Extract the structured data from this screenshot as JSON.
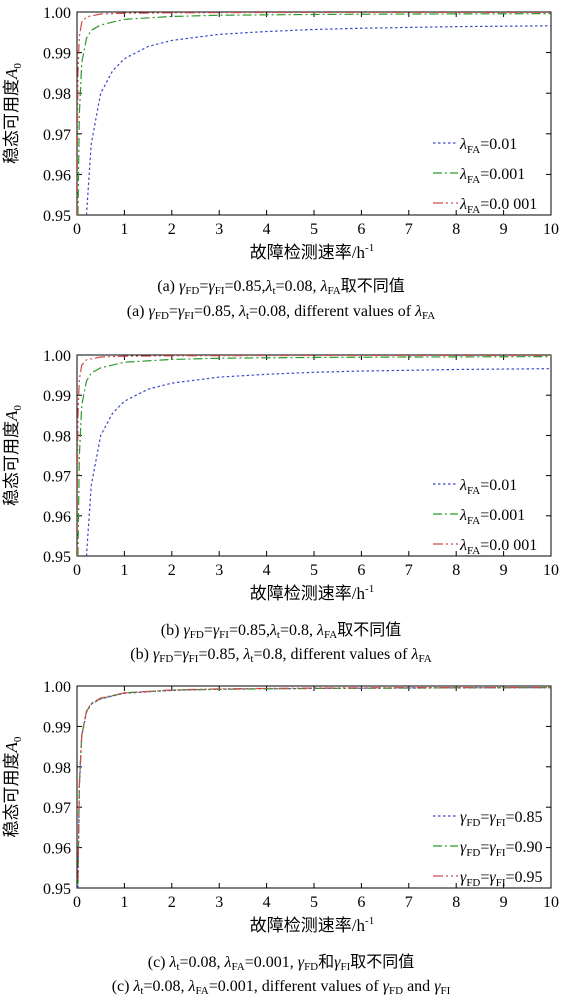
{
  "chart_data": [
    {
      "type": "line",
      "ylabel": "稳态可用度A0",
      "xlabel": "故障检测速率/h-1",
      "xlim": [
        0,
        10
      ],
      "ylim": [
        0.95,
        1.0
      ],
      "xticks": [
        "0",
        "1",
        "2",
        "3",
        "4",
        "5",
        "6",
        "7",
        "8",
        "9",
        "10"
      ],
      "yticks": [
        "0.95",
        "0.96",
        "0.97",
        "0.98",
        "0.99",
        "1.00"
      ],
      "grid": false,
      "legend": "bottom-right",
      "series": [
        {
          "name": "λFA=0.01",
          "color": "#3a48c8",
          "x": [
            0.2,
            0.3,
            0.5,
            0.75,
            1,
            1.5,
            2,
            3,
            4,
            5,
            6,
            7,
            8,
            9,
            10
          ],
          "y": [
            0.95,
            0.9675,
            0.98,
            0.9855,
            0.9885,
            0.9915,
            0.993,
            0.9945,
            0.9952,
            0.9957,
            0.996,
            0.9962,
            0.9964,
            0.9965,
            0.9966
          ]
        },
        {
          "name": "λFA=0.001",
          "color": "#2a9a2a",
          "x": [
            0.02,
            0.05,
            0.1,
            0.2,
            0.3,
            0.5,
            1,
            2,
            3,
            5,
            7,
            10
          ],
          "y": [
            0.95,
            0.975,
            0.9875,
            0.9935,
            0.9955,
            0.9968,
            0.9982,
            0.9989,
            0.9992,
            0.9994,
            0.9995,
            0.9996
          ]
        },
        {
          "name": "λFA=0.0 001",
          "color": "#d24a4a",
          "x": [
            0.005,
            0.01,
            0.02,
            0.05,
            0.1,
            0.2,
            0.5,
            1,
            2,
            5,
            10
          ],
          "y": [
            0.95,
            0.97,
            0.985,
            0.994,
            0.9975,
            0.9988,
            0.9995,
            0.9997,
            0.9998,
            0.9999,
            0.9999
          ]
        }
      ]
    },
    {
      "type": "line",
      "ylabel": "稳态可用度A0",
      "xlabel": "故障检测速率/h-1",
      "xlim": [
        0,
        10
      ],
      "ylim": [
        0.95,
        1.0
      ],
      "xticks": [
        "0",
        "1",
        "2",
        "3",
        "4",
        "5",
        "6",
        "7",
        "8",
        "9",
        "10"
      ],
      "yticks": [
        "0.95",
        "0.96",
        "0.97",
        "0.98",
        "0.99",
        "1.00"
      ],
      "grid": false,
      "legend": "bottom-right",
      "series": [
        {
          "name": "λFA=0.01",
          "color": "#3a48c8",
          "x": [
            0.2,
            0.3,
            0.5,
            0.75,
            1,
            1.5,
            2,
            3,
            4,
            5,
            6,
            7,
            8,
            9,
            10
          ],
          "y": [
            0.95,
            0.9675,
            0.98,
            0.9855,
            0.9885,
            0.9915,
            0.993,
            0.9945,
            0.9952,
            0.9957,
            0.996,
            0.9962,
            0.9964,
            0.9965,
            0.9966
          ]
        },
        {
          "name": "λFA=0.001",
          "color": "#2a9a2a",
          "x": [
            0.02,
            0.05,
            0.1,
            0.2,
            0.3,
            0.5,
            1,
            2,
            3,
            5,
            7,
            10
          ],
          "y": [
            0.95,
            0.975,
            0.9875,
            0.9935,
            0.9955,
            0.9968,
            0.9982,
            0.9989,
            0.9992,
            0.9994,
            0.9995,
            0.9996
          ]
        },
        {
          "name": "λFA=0.0 001",
          "color": "#d24a4a",
          "x": [
            0.005,
            0.01,
            0.02,
            0.05,
            0.1,
            0.2,
            0.5,
            1,
            2,
            5,
            10
          ],
          "y": [
            0.95,
            0.97,
            0.985,
            0.994,
            0.9975,
            0.9988,
            0.9995,
            0.9997,
            0.9998,
            0.9999,
            0.9999
          ]
        }
      ]
    },
    {
      "type": "line",
      "ylabel": "稳态可用度A0",
      "xlabel": "故障检测速率/h-1",
      "xlim": [
        0,
        10
      ],
      "ylim": [
        0.95,
        1.0
      ],
      "xticks": [
        "0",
        "1",
        "2",
        "3",
        "4",
        "5",
        "6",
        "7",
        "8",
        "9",
        "10"
      ],
      "yticks": [
        "0.95",
        "0.96",
        "0.97",
        "0.98",
        "0.99",
        "1.00"
      ],
      "grid": false,
      "legend": "bottom-right",
      "series": [
        {
          "name": "γFD=γFI=0.85",
          "color": "#3a48c8",
          "x": [
            0.02,
            0.05,
            0.1,
            0.2,
            0.3,
            0.5,
            1,
            2,
            3,
            5,
            7,
            10
          ],
          "y": [
            0.95,
            0.975,
            0.9875,
            0.9935,
            0.9955,
            0.9968,
            0.9982,
            0.9989,
            0.9992,
            0.9994,
            0.9995,
            0.9996
          ]
        },
        {
          "name": "γFD=γFI=0.90",
          "color": "#2a9a2a",
          "x": [
            0.02,
            0.05,
            0.1,
            0.2,
            0.3,
            0.5,
            1,
            2,
            3,
            5,
            7,
            10
          ],
          "y": [
            0.951,
            0.9755,
            0.9878,
            0.9937,
            0.9956,
            0.9969,
            0.9983,
            0.999,
            0.9992,
            0.9994,
            0.9995,
            0.9996
          ]
        },
        {
          "name": "γFD=γFI=0.95",
          "color": "#d24a4a",
          "x": [
            0.02,
            0.05,
            0.1,
            0.2,
            0.3,
            0.5,
            1,
            2,
            3,
            5,
            7,
            10
          ],
          "y": [
            0.952,
            0.976,
            0.988,
            0.9938,
            0.9957,
            0.997,
            0.9983,
            0.999,
            0.9993,
            0.9995,
            0.9996,
            0.9996
          ]
        }
      ]
    }
  ],
  "captions": [
    {
      "cn": {
        "a": "(a) ",
        "g1": "γ",
        "s1": "FD",
        "eq1": "=",
        "g2": "γ",
        "s2": "FI",
        "t1": "=0.85,",
        "l1": "λ",
        "s3": "t",
        "t2": "=0.08, ",
        "l2": "λ",
        "s4": "FA",
        "t3": "取不同值"
      },
      "en": {
        "a": "(a) ",
        "g1": "γ",
        "s1": "FD",
        "eq1": "=",
        "g2": "γ",
        "s2": "FI",
        "t1": "=0.85, ",
        "l1": "λ",
        "s3": "t",
        "t2": "=0.08, different values of  ",
        "l2": "λ",
        "s4": "FA",
        "t3": ""
      }
    },
    {
      "cn": {
        "a": "(b) ",
        "g1": "γ",
        "s1": "FD",
        "eq1": "=",
        "g2": "γ",
        "s2": "FI",
        "t1": "=0.85,",
        "l1": "λ",
        "s3": "t",
        "t2": "=0.8, ",
        "l2": "λ",
        "s4": "FA",
        "t3": "取不同值"
      },
      "en": {
        "a": "(b) ",
        "g1": "γ",
        "s1": "FD",
        "eq1": "=",
        "g2": "γ",
        "s2": "FI",
        "t1": "=0.85, ",
        "l1": "λ",
        "s3": "t",
        "t2": "=0.8, different values of  ",
        "l2": "λ",
        "s4": "FA",
        "t3": ""
      }
    },
    {
      "cn": {
        "a": "(c) ",
        "g1": "λ",
        "s1": "t",
        "eq1": "=0.08, ",
        "g2": "λ",
        "s2": "FA",
        "t1": "=0.001, ",
        "l1": "γ",
        "s3": "FD",
        "t2": "和",
        "l2": "γ",
        "s4": "FI",
        "t3": "取不同值"
      },
      "en": {
        "a": "(c) ",
        "g1": "λ",
        "s1": "t",
        "eq1": "=0.08, ",
        "g2": "λ",
        "s2": "FA",
        "t1": "=0.001, different values of  ",
        "l1": "γ",
        "s3": "FD",
        "t2": " and ",
        "l2": "γ",
        "s4": "FI",
        "t3": ""
      }
    }
  ]
}
